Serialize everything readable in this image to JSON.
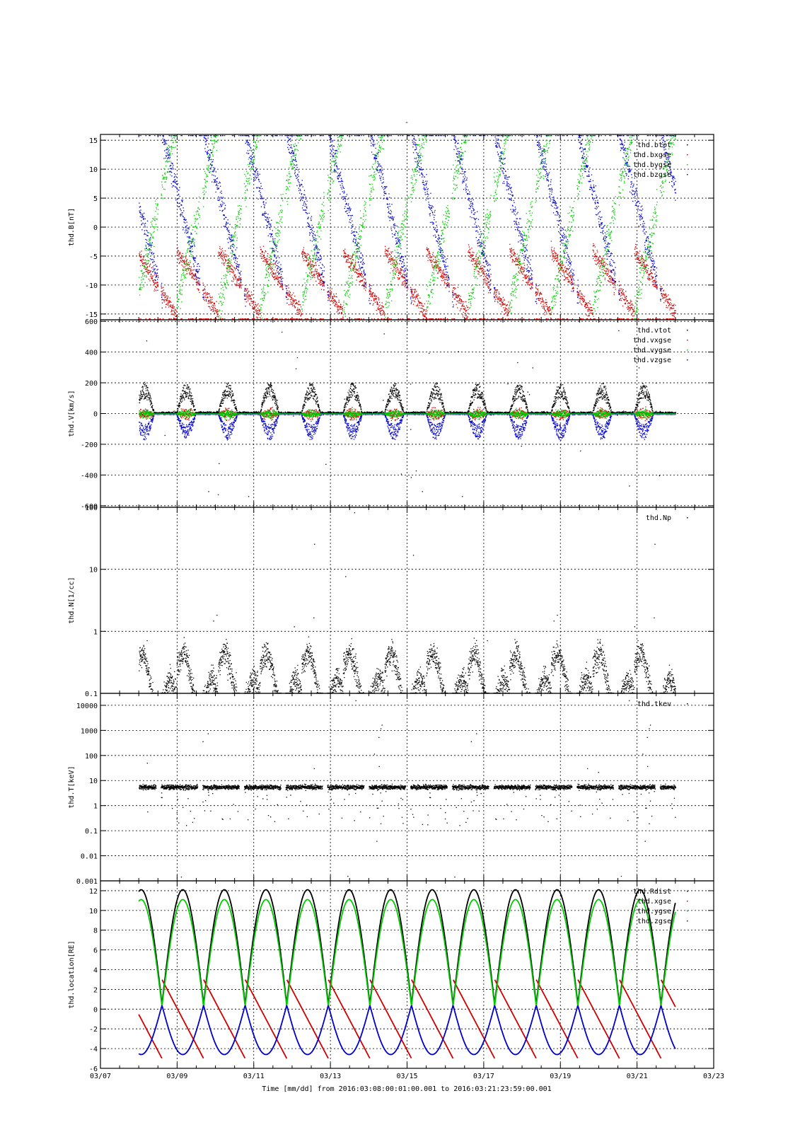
{
  "figure": {
    "title": "-",
    "time_label": "Time [mm/dd]  from 2016:03:08:00:01:00.001  to  2016:03:21:23:59:00.001"
  },
  "colors": {
    "black": "#000000",
    "red": "#d00000",
    "green": "#00cc00",
    "blue": "#0000cc"
  },
  "chart_data": [
    {
      "id": "B",
      "type": "scatter",
      "ylabel": "thd.B[nT]",
      "yscale": "linear",
      "ylim": [
        -16,
        16
      ],
      "yticks": [
        -15,
        -10,
        -5,
        0,
        5,
        10,
        15
      ],
      "xlim": [
        "2016-03-07",
        "2016-03-23"
      ],
      "legend_placement": "top-right",
      "grid": true,
      "series": [
        {
          "name": "thd.btot",
          "color": "#000000"
        },
        {
          "name": "thd.bxgse",
          "color": "#d00000"
        },
        {
          "name": "thd.bygse",
          "color": "#00cc00"
        },
        {
          "name": "thd.bzgse",
          "color": "#0000cc"
        }
      ]
    },
    {
      "id": "V",
      "type": "scatter",
      "ylabel": "thd.V[km/s]",
      "yscale": "linear",
      "ylim": [
        -610,
        610
      ],
      "yticks": [
        -600,
        -400,
        -200,
        0,
        200,
        400,
        600
      ],
      "xlim": [
        "2016-03-07",
        "2016-03-23"
      ],
      "legend_placement": "top-right",
      "grid": true,
      "series": [
        {
          "name": "thd.vtot",
          "color": "#000000"
        },
        {
          "name": "thd.vxgse",
          "color": "#d00000"
        },
        {
          "name": "thd.vygse",
          "color": "#00cc00"
        },
        {
          "name": "thd.vzgse",
          "color": "#0000cc"
        }
      ]
    },
    {
      "id": "N",
      "type": "scatter",
      "ylabel": "thd.N[1/cc]",
      "yscale": "log",
      "ylim": [
        0.1,
        100
      ],
      "yticks": [
        0.1,
        1,
        10,
        100
      ],
      "ytick_labels": [
        "0.1",
        "1",
        "10",
        "100"
      ],
      "xlim": [
        "2016-03-07",
        "2016-03-23"
      ],
      "legend_placement": "top-right",
      "grid": true,
      "series": [
        {
          "name": "thd.Np",
          "color": "#000000"
        }
      ]
    },
    {
      "id": "T",
      "type": "scatter",
      "ylabel": "thd.T[keV]",
      "yscale": "log",
      "ylim": [
        0.001,
        30000
      ],
      "yticks": [
        0.001,
        0.01,
        0.1,
        1,
        10,
        100,
        1000,
        10000
      ],
      "ytick_labels": [
        "0.001",
        "0.01",
        "0.1",
        "1",
        "10",
        "100",
        "1000",
        "10000"
      ],
      "xlim": [
        "2016-03-07",
        "2016-03-23"
      ],
      "legend_placement": "top-right",
      "grid": true,
      "series": [
        {
          "name": "thd.tkev",
          "color": "#000000"
        }
      ]
    },
    {
      "id": "L",
      "type": "line",
      "ylabel": "thd.location[RE]",
      "yscale": "linear",
      "ylim": [
        -6,
        13
      ],
      "yticks": [
        -6,
        -4,
        -2,
        0,
        2,
        4,
        6,
        8,
        10,
        12
      ],
      "xlim": [
        "2016-03-07",
        "2016-03-23"
      ],
      "xticks": [
        "2016-03-07",
        "2016-03-09",
        "2016-03-11",
        "2016-03-13",
        "2016-03-15",
        "2016-03-17",
        "2016-03-19",
        "2016-03-21",
        "2016-03-23"
      ],
      "xtick_labels": [
        "03/07",
        "03/09",
        "03/11",
        "03/13",
        "03/15",
        "03/17",
        "03/19",
        "03/21",
        "03/23"
      ],
      "legend_placement": "top-right",
      "grid": true,
      "series": [
        {
          "name": "thd.Rdist",
          "color": "#000000"
        },
        {
          "name": "thd.xgse",
          "color": "#d00000"
        },
        {
          "name": "thd.ygse",
          "color": "#00cc00"
        },
        {
          "name": "thd.zgse",
          "color": "#0000cc"
        }
      ]
    }
  ]
}
